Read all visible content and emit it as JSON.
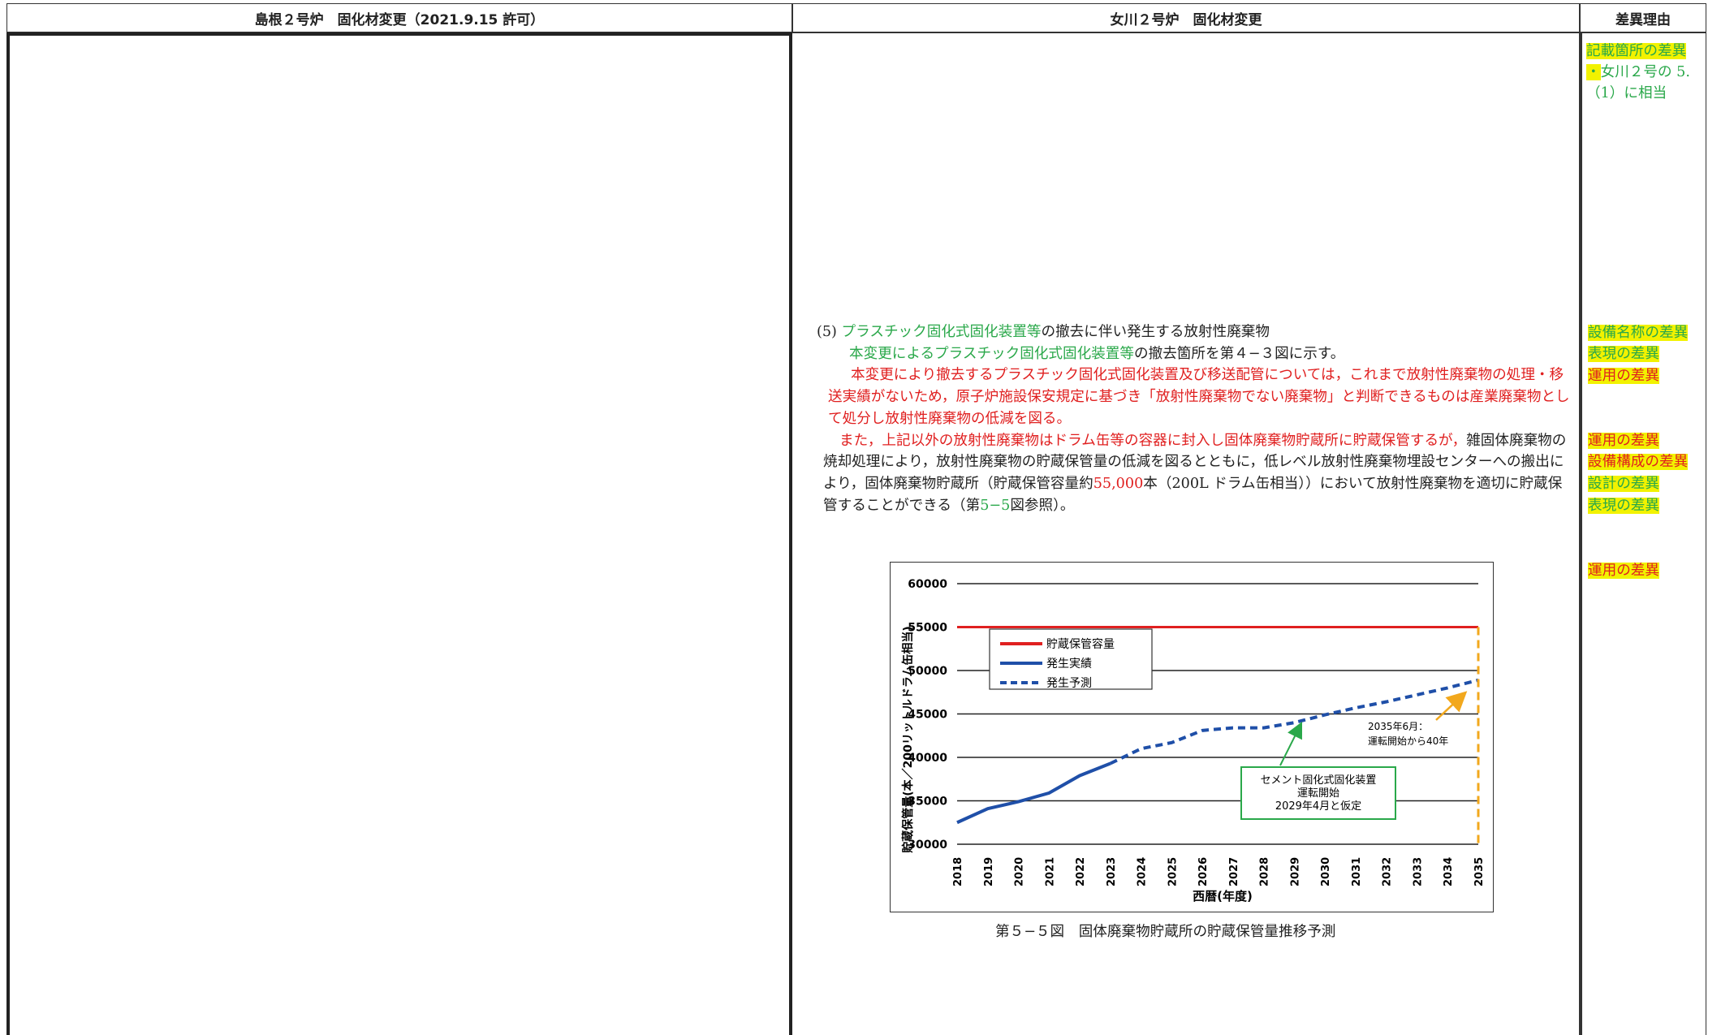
{
  "header": {
    "left": "島根２号炉　固化材変更（2021.9.15 許可）",
    "middle": "女川２号炉　固化材変更",
    "right": "差異理由"
  },
  "right_note": {
    "line1": "記載箇所の差異",
    "line2_bullet": "・",
    "line2": "女川２号の 5.",
    "line3": "（1）に相当"
  },
  "section": {
    "num": "(5)",
    "title_green": "プラスチック固化式固化装置等",
    "title_rest": "の撤去に伴い発生する放射性廃棄物",
    "p1_green": "本変更によるプラスチック固化式固化装置等",
    "p1_rest": "の撤去箇所を第４−３図に示す。",
    "p2_red": "本変更により撤去するプラスチック固化式固化装置及び移送配管については，これまで放射性廃棄物の処理・移送実績がないため，原子炉施設保安規定に基づき「放射性廃棄物でない廃棄物」と判断できるものは産業廃棄物として処分し放射性廃棄物の低減を図る。",
    "p3_red": "また，上記以外の放射性廃棄物はドラム缶等の容器に封入し固体廃棄物貯蔵所に貯蔵保管するが，",
    "p3_a": "雑固体廃棄物の焼却処理により，放射性廃棄物の貯蔵保管量の低減を図るとともに，低レベル放射性廃棄物埋設センターへの搬出により，固体廃棄物貯蔵所（貯蔵保管容量約",
    "p3_num": "55,000",
    "p3_b": "本（200L ドラム缶相当））において放射性廃棄物を適切に貯蔵保管することができる（第",
    "p3_fig": "5−5",
    "p3_c": "図参照）。"
  },
  "tags": [
    {
      "text": "設備名称の差異",
      "kind": "green"
    },
    {
      "text": "表現の差異",
      "kind": "green"
    },
    {
      "text": "運用の差異",
      "kind": "red"
    },
    {
      "text": "運用の差異",
      "kind": "red"
    },
    {
      "text": "設備構成の差異",
      "kind": "red"
    },
    {
      "text": "設計の差異",
      "kind": "green"
    },
    {
      "text": "表現の差異",
      "kind": "green"
    },
    {
      "text": "運用の差異",
      "kind": "red"
    }
  ],
  "caption": "第５−５図　固体廃棄物貯蔵所の貯蔵保管量推移予測",
  "chart_data": {
    "type": "line",
    "xlabel": "西暦(年度)",
    "ylabel": "貯蔵保管量(本／200リットルドラム缶相当)",
    "ylim": [
      30000,
      60000
    ],
    "yticks": [
      30000,
      35000,
      40000,
      45000,
      50000,
      55000,
      60000
    ],
    "x": [
      "2018",
      "2019",
      "2020",
      "2021",
      "2022",
      "2023",
      "2024",
      "2025",
      "2026",
      "2027",
      "2028",
      "2029",
      "2030",
      "2031",
      "2032",
      "2033",
      "2034",
      "2035"
    ],
    "series": [
      {
        "name": "貯蔵保管容量",
        "color": "#e02020",
        "style": "solid",
        "x": [
          2018,
          2035
        ],
        "values": [
          55000,
          55000
        ]
      },
      {
        "name": "発生実績",
        "color": "#1f4fa8",
        "style": "solid",
        "x": [
          2018,
          2019,
          2020,
          2021,
          2022,
          2023
        ],
        "values": [
          32500,
          34100,
          34900,
          35900,
          37900,
          39300
        ]
      },
      {
        "name": "発生予測",
        "color": "#1f4fa8",
        "style": "dashed",
        "x": [
          2023,
          2024,
          2025,
          2026,
          2027,
          2028,
          2029,
          2030,
          2031,
          2032,
          2033,
          2034,
          2035
        ],
        "values": [
          39300,
          41000,
          41700,
          43100,
          43400,
          43400,
          44000,
          44900,
          45700,
          46400,
          47200,
          48000,
          48900
        ]
      }
    ],
    "annotations": [
      {
        "text_lines": [
          "2035年6月：",
          "運転開始から40年"
        ],
        "color": "#f2a81d"
      },
      {
        "text_lines": [
          "セメント固化式固化装置",
          "運転開始",
          "2029年4月と仮定"
        ],
        "color": "#2aa84a"
      }
    ]
  }
}
